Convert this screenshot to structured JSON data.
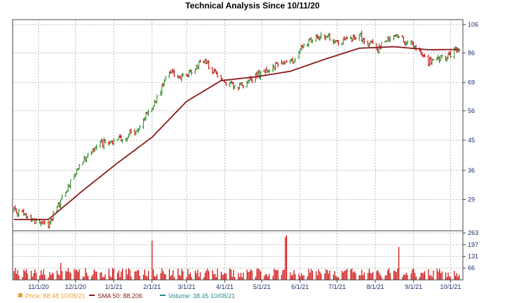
{
  "chart_data": {
    "type": "line",
    "title": "Technical Analysis Since 10/11/20",
    "price_axis": {
      "ticks": [
        29,
        36,
        45,
        56,
        69,
        86,
        106
      ],
      "scale": "log",
      "ylim": [
        23,
        110
      ]
    },
    "volume_axis": {
      "ticks": [
        66,
        131,
        197,
        263
      ],
      "ylim": [
        0,
        275
      ]
    },
    "x_tick_labels": [
      "11/1/20",
      "12/1/20",
      "1/1/21",
      "2/1/21",
      "3/1/21",
      "4/1/21",
      "5/1/21",
      "6/1/21",
      "7/1/21",
      "8/1/21",
      "9/1/21",
      "10/1/21"
    ],
    "x_tick_dates": [
      "2020-11-01",
      "2020-12-01",
      "2021-01-01",
      "2021-02-01",
      "2021-03-01",
      "2021-04-01",
      "2021-05-01",
      "2021-06-01",
      "2021-07-01",
      "2021-08-01",
      "2021-09-01",
      "2021-10-01"
    ],
    "xlim": [
      "2020-10-11",
      "2021-10-11"
    ],
    "grid": true,
    "legend_placement": "bottom",
    "series": [
      {
        "name": "Price",
        "color": "#228b22",
        "x": [
          "2020-10-12",
          "2020-10-26",
          "2020-11-09",
          "2020-11-23",
          "2020-12-07",
          "2020-12-21",
          "2021-01-04",
          "2021-01-18",
          "2021-02-01",
          "2021-02-15",
          "2021-03-01",
          "2021-03-15",
          "2021-03-29",
          "2021-04-12",
          "2021-04-26",
          "2021-05-10",
          "2021-05-24",
          "2021-06-07",
          "2021-06-21",
          "2021-07-05",
          "2021-07-19",
          "2021-08-02",
          "2021-08-16",
          "2021-08-30",
          "2021-09-13",
          "2021-09-27",
          "2021-10-08"
        ],
        "values": [
          27,
          25,
          24,
          31,
          39,
          44,
          45,
          48,
          58,
          74,
          72,
          82,
          70,
          67,
          72,
          78,
          80,
          93,
          97,
          93,
          98,
          88,
          99,
          92,
          80,
          83,
          88.48
        ]
      },
      {
        "name": "SMA 50",
        "color": "#8b1a1a",
        "x": [
          "2020-10-12",
          "2020-11-09",
          "2020-12-07",
          "2021-01-04",
          "2021-02-01",
          "2021-03-01",
          "2021-03-29",
          "2021-04-26",
          "2021-05-24",
          "2021-06-21",
          "2021-07-19",
          "2021-08-16",
          "2021-09-13",
          "2021-10-08"
        ],
        "values": [
          25,
          25,
          31,
          38,
          46,
          60,
          70,
          72,
          75,
          82,
          89,
          90,
          88,
          88.206
        ]
      }
    ],
    "volume": {
      "name": "Volume",
      "color": "#cc0000",
      "typical": 40,
      "spikes": [
        {
          "date": "2020-11-19",
          "value": 95
        },
        {
          "date": "2021-02-01",
          "value": 220
        },
        {
          "date": "2021-05-20",
          "value": 240
        },
        {
          "date": "2021-05-21",
          "value": 250
        },
        {
          "date": "2021-08-20",
          "value": 185
        }
      ]
    },
    "legend": {
      "price_label": "Price: 88.48  10/08/21",
      "sma_label": "SMA 50: 88.206",
      "volume_label": "Volume: 38.45  10/08/21"
    },
    "colors": {
      "price_up": "#228b22",
      "price_down": "#cc0000",
      "sma": "#8b1a1a",
      "volume": "#cc0000",
      "legend_price": "#e8a33d",
      "legend_sma": "#8b1a1a",
      "legend_volume": "#2a8c8c",
      "axis_text": "#1a2f6b",
      "grid": "#bdbdbd"
    }
  }
}
